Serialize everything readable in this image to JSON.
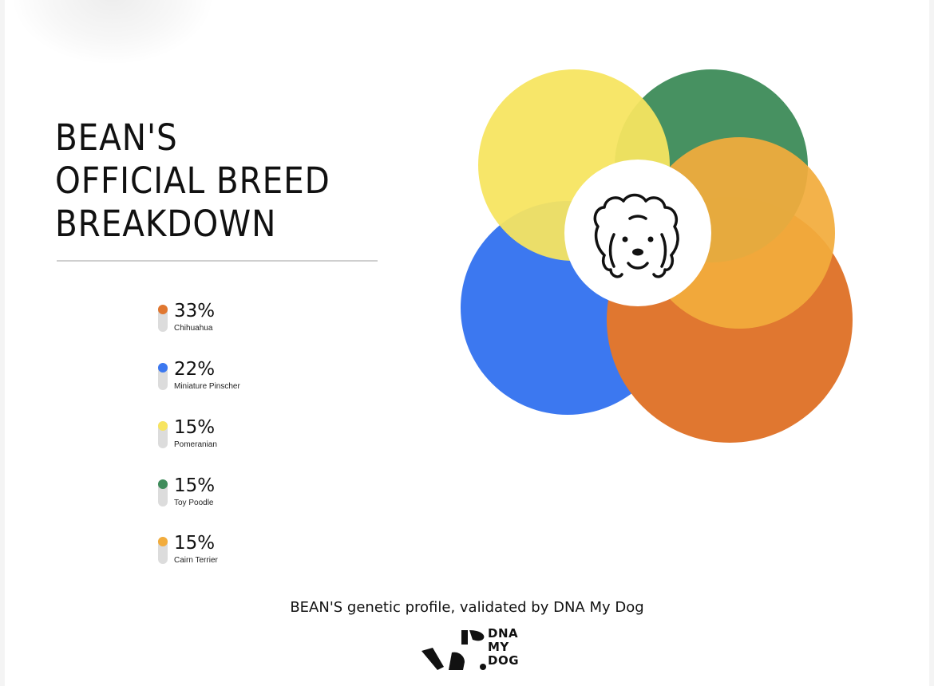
{
  "title_lines": [
    "BEAN'S",
    "OFFICIAL BREED",
    "BREAKDOWN"
  ],
  "legend": [
    {
      "percent": "33%",
      "breed": "Chihuahua",
      "color": "#e07730"
    },
    {
      "percent": "22%",
      "breed": "Miniature Pinscher",
      "color": "#3c78f0"
    },
    {
      "percent": "15%",
      "breed": "Pomeranian",
      "color": "#f7e460"
    },
    {
      "percent": "15%",
      "breed": "Toy Poodle",
      "color": "#3f8c5b"
    },
    {
      "percent": "15%",
      "breed": "Cairn Terrier",
      "color": "#f2ac3c"
    }
  ],
  "chart_data": {
    "type": "venn",
    "series": [
      {
        "name": "Chihuahua",
        "value": 33,
        "color": "#e07730"
      },
      {
        "name": "Miniature Pinscher",
        "value": 22,
        "color": "#3c78f0"
      },
      {
        "name": "Pomeranian",
        "value": 15,
        "color": "#f7e460"
      },
      {
        "name": "Toy Poodle",
        "value": 15,
        "color": "#3f8c5b"
      },
      {
        "name": "Cairn Terrier",
        "value": 15,
        "color": "#f2ac3c"
      }
    ],
    "center_icon": "dog-face-icon"
  },
  "footer": {
    "caption": "BEAN'S genetic profile, validated by DNA My Dog",
    "brand_lines": [
      "DNA",
      "MY",
      "DOG"
    ],
    "brand_icon": "dna-my-dog-logo-icon"
  }
}
